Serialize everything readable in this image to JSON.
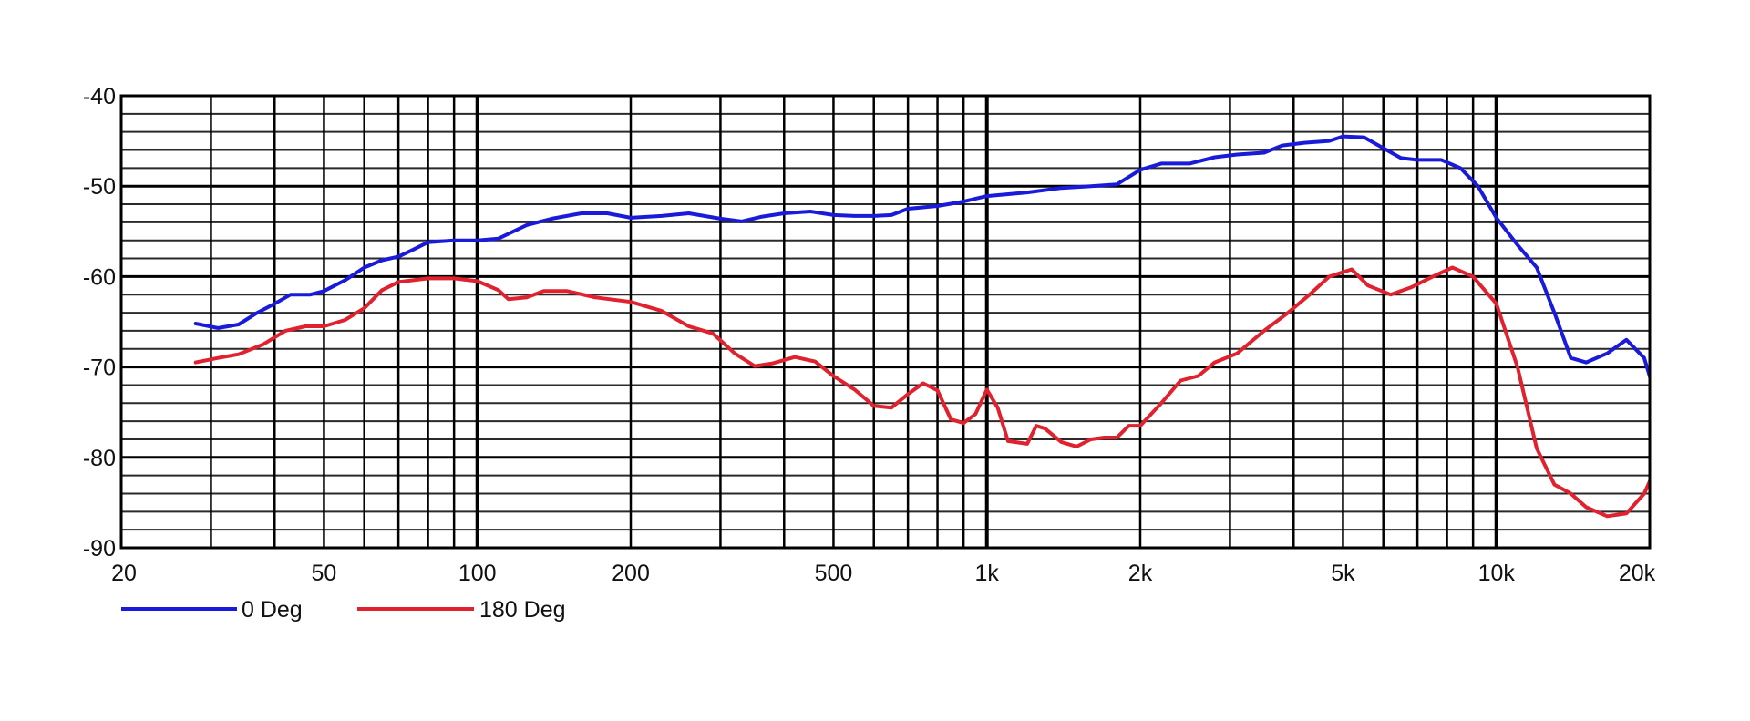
{
  "chart_data": {
    "type": "line",
    "title": "",
    "xlabel": "",
    "ylabel": "",
    "x_scale": "log",
    "xlim": [
      20,
      20000
    ],
    "ylim": [
      -90,
      -40
    ],
    "x_tick_labels": [
      {
        "value": 20,
        "label": "20"
      },
      {
        "value": 50,
        "label": "50"
      },
      {
        "value": 100,
        "label": "100"
      },
      {
        "value": 200,
        "label": "200"
      },
      {
        "value": 500,
        "label": "500"
      },
      {
        "value": 1000,
        "label": "1k"
      },
      {
        "value": 2000,
        "label": "2k"
      },
      {
        "value": 5000,
        "label": "5k"
      },
      {
        "value": 10000,
        "label": "10k"
      },
      {
        "value": 20000,
        "label": "20k"
      }
    ],
    "y_tick_labels": [
      {
        "value": -40,
        "label": "-40"
      },
      {
        "value": -50,
        "label": "-50"
      },
      {
        "value": -60,
        "label": "-60"
      },
      {
        "value": -70,
        "label": "-70"
      },
      {
        "value": -80,
        "label": "-80"
      },
      {
        "value": -90,
        "label": "-90"
      }
    ],
    "grid": true,
    "legend_position": "bottom-left",
    "series": [
      {
        "name": "0 Deg",
        "color": "#1a1adb",
        "points": [
          [
            28,
            -65.2
          ],
          [
            31,
            -65.7
          ],
          [
            34,
            -65.3
          ],
          [
            37,
            -64.0
          ],
          [
            40,
            -63.0
          ],
          [
            43,
            -62.0
          ],
          [
            47,
            -62.0
          ],
          [
            50,
            -61.6
          ],
          [
            55,
            -60.4
          ],
          [
            60,
            -59.0
          ],
          [
            65,
            -58.2
          ],
          [
            70,
            -57.8
          ],
          [
            75,
            -57.0
          ],
          [
            80,
            -56.2
          ],
          [
            90,
            -56.0
          ],
          [
            100,
            -56.0
          ],
          [
            110,
            -55.8
          ],
          [
            125,
            -54.3
          ],
          [
            140,
            -53.6
          ],
          [
            160,
            -53.0
          ],
          [
            180,
            -53.0
          ],
          [
            200,
            -53.5
          ],
          [
            230,
            -53.3
          ],
          [
            260,
            -53.0
          ],
          [
            300,
            -53.6
          ],
          [
            330,
            -53.9
          ],
          [
            360,
            -53.4
          ],
          [
            400,
            -53.0
          ],
          [
            450,
            -52.8
          ],
          [
            500,
            -53.2
          ],
          [
            550,
            -53.3
          ],
          [
            600,
            -53.3
          ],
          [
            650,
            -53.2
          ],
          [
            700,
            -52.5
          ],
          [
            800,
            -52.2
          ],
          [
            900,
            -51.7
          ],
          [
            1000,
            -51.1
          ],
          [
            1200,
            -50.7
          ],
          [
            1400,
            -50.2
          ],
          [
            1600,
            -50.0
          ],
          [
            1800,
            -49.8
          ],
          [
            2000,
            -48.2
          ],
          [
            2200,
            -47.5
          ],
          [
            2500,
            -47.5
          ],
          [
            2800,
            -46.8
          ],
          [
            3100,
            -46.5
          ],
          [
            3500,
            -46.3
          ],
          [
            3800,
            -45.5
          ],
          [
            4200,
            -45.2
          ],
          [
            4700,
            -45.0
          ],
          [
            5000,
            -44.5
          ],
          [
            5500,
            -44.6
          ],
          [
            6000,
            -45.8
          ],
          [
            6500,
            -46.9
          ],
          [
            7000,
            -47.1
          ],
          [
            7800,
            -47.1
          ],
          [
            8500,
            -48.0
          ],
          [
            9200,
            -50.0
          ],
          [
            10000,
            -53.5
          ],
          [
            11000,
            -56.5
          ],
          [
            12000,
            -59.0
          ],
          [
            13000,
            -64.0
          ],
          [
            14000,
            -69.0
          ],
          [
            15000,
            -69.5
          ],
          [
            16500,
            -68.5
          ],
          [
            18000,
            -67.0
          ],
          [
            19500,
            -69.0
          ],
          [
            21000,
            -75.0
          ]
        ]
      },
      {
        "name": "180 Deg",
        "color": "#e0212e",
        "points": [
          [
            28,
            -69.5
          ],
          [
            31,
            -69.0
          ],
          [
            34,
            -68.6
          ],
          [
            38,
            -67.5
          ],
          [
            42,
            -66.0
          ],
          [
            46,
            -65.5
          ],
          [
            50,
            -65.5
          ],
          [
            55,
            -64.8
          ],
          [
            60,
            -63.5
          ],
          [
            65,
            -61.5
          ],
          [
            70,
            -60.6
          ],
          [
            80,
            -60.2
          ],
          [
            90,
            -60.2
          ],
          [
            100,
            -60.5
          ],
          [
            110,
            -61.5
          ],
          [
            115,
            -62.5
          ],
          [
            125,
            -62.3
          ],
          [
            135,
            -61.6
          ],
          [
            150,
            -61.6
          ],
          [
            170,
            -62.3
          ],
          [
            200,
            -62.8
          ],
          [
            230,
            -63.8
          ],
          [
            260,
            -65.5
          ],
          [
            290,
            -66.3
          ],
          [
            320,
            -68.5
          ],
          [
            350,
            -69.9
          ],
          [
            380,
            -69.6
          ],
          [
            420,
            -68.9
          ],
          [
            460,
            -69.4
          ],
          [
            500,
            -71.0
          ],
          [
            550,
            -72.5
          ],
          [
            600,
            -74.3
          ],
          [
            650,
            -74.5
          ],
          [
            700,
            -73.0
          ],
          [
            750,
            -71.8
          ],
          [
            800,
            -72.6
          ],
          [
            850,
            -75.8
          ],
          [
            900,
            -76.2
          ],
          [
            950,
            -75.2
          ],
          [
            1000,
            -72.5
          ],
          [
            1050,
            -74.5
          ],
          [
            1100,
            -78.2
          ],
          [
            1200,
            -78.5
          ],
          [
            1250,
            -76.5
          ],
          [
            1300,
            -76.8
          ],
          [
            1400,
            -78.3
          ],
          [
            1500,
            -78.8
          ],
          [
            1600,
            -78.0
          ],
          [
            1700,
            -77.8
          ],
          [
            1800,
            -77.8
          ],
          [
            1900,
            -76.5
          ],
          [
            2000,
            -76.5
          ],
          [
            2200,
            -74.0
          ],
          [
            2400,
            -71.5
          ],
          [
            2600,
            -71.0
          ],
          [
            2800,
            -69.5
          ],
          [
            3100,
            -68.5
          ],
          [
            3500,
            -66.0
          ],
          [
            3900,
            -64.0
          ],
          [
            4300,
            -62.0
          ],
          [
            4700,
            -60.0
          ],
          [
            5200,
            -59.2
          ],
          [
            5600,
            -61.0
          ],
          [
            6200,
            -62.0
          ],
          [
            6800,
            -61.2
          ],
          [
            7500,
            -60.0
          ],
          [
            8200,
            -59.0
          ],
          [
            9000,
            -60.0
          ],
          [
            10000,
            -63.0
          ],
          [
            11000,
            -70.0
          ],
          [
            12000,
            -79.0
          ],
          [
            13000,
            -83.0
          ],
          [
            14000,
            -84.0
          ],
          [
            15000,
            -85.5
          ],
          [
            16500,
            -86.5
          ],
          [
            18000,
            -86.2
          ],
          [
            19500,
            -84.0
          ],
          [
            21000,
            -80.0
          ],
          [
            22500,
            -76.5
          ]
        ]
      }
    ]
  }
}
